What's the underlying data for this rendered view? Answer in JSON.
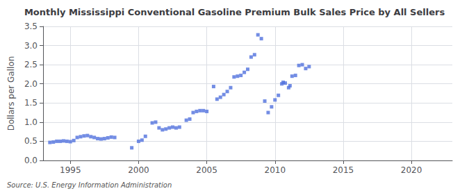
{
  "chart_data": {
    "type": "scatter",
    "title": "Monthly Mississippi Conventional Gasoline Premium Bulk Sales Price by All Sellers",
    "ylabel": "Dollars per Gallon",
    "annotations": [
      "Source: U.S. Energy Information Administration"
    ],
    "marker": "square",
    "grid": true,
    "xlim": [
      1993.0,
      2023.0
    ],
    "ylim": [
      0.0,
      3.5
    ],
    "xticks": [
      1995,
      2000,
      2005,
      2010,
      2015,
      2020
    ],
    "yticks": [
      {
        "value": 0.0,
        "label": "0.0"
      },
      0.5,
      {
        "value": 1.0,
        "label": "1.0"
      },
      1.5,
      {
        "value": 2.0,
        "label": "2.0"
      },
      2.5,
      {
        "value": 3.0,
        "label": "3.0"
      },
      3.5
    ],
    "x": [
      1993.5,
      1993.75,
      1994.0,
      1994.25,
      1994.5,
      1994.75,
      1995.0,
      1995.25,
      1995.5,
      1995.75,
      1996.0,
      1996.25,
      1996.5,
      1996.75,
      1997.0,
      1997.25,
      1997.5,
      1997.75,
      1998.0,
      1998.25,
      1999.5,
      2000.0,
      2000.25,
      2000.5,
      2001.0,
      2001.25,
      2001.5,
      2001.75,
      2002.0,
      2002.25,
      2002.5,
      2002.75,
      2003.0,
      2003.5,
      2003.75,
      2004.0,
      2004.25,
      2004.5,
      2004.75,
      2005.0,
      2005.5,
      2005.75,
      2006.0,
      2006.25,
      2006.5,
      2006.75,
      2007.0,
      2007.25,
      2007.5,
      2007.75,
      2008.0,
      2008.25,
      2008.5,
      2008.75,
      2009.0,
      2009.25,
      2009.5,
      2009.75,
      2010.0,
      2010.25,
      2010.5,
      2010.6,
      2010.75,
      2011.0,
      2011.1,
      2011.25,
      2011.5,
      2011.75,
      2012.0,
      2012.25,
      2012.5
    ],
    "values": [
      0.47,
      0.48,
      0.5,
      0.5,
      0.51,
      0.5,
      0.49,
      0.52,
      0.6,
      0.62,
      0.64,
      0.65,
      0.62,
      0.6,
      0.57,
      0.56,
      0.57,
      0.59,
      0.61,
      0.6,
      0.33,
      0.5,
      0.53,
      0.63,
      0.98,
      1.0,
      0.85,
      0.8,
      0.82,
      0.85,
      0.87,
      0.85,
      0.87,
      1.05,
      1.08,
      1.25,
      1.28,
      1.3,
      1.3,
      1.28,
      1.93,
      1.6,
      1.65,
      1.72,
      1.8,
      1.9,
      2.18,
      2.2,
      2.22,
      2.3,
      2.38,
      2.7,
      2.76,
      3.28,
      3.18,
      1.55,
      1.25,
      1.4,
      1.58,
      1.7,
      2.0,
      2.04,
      2.02,
      1.9,
      1.95,
      2.2,
      2.22,
      2.48,
      2.5,
      2.4,
      2.45
    ]
  }
}
